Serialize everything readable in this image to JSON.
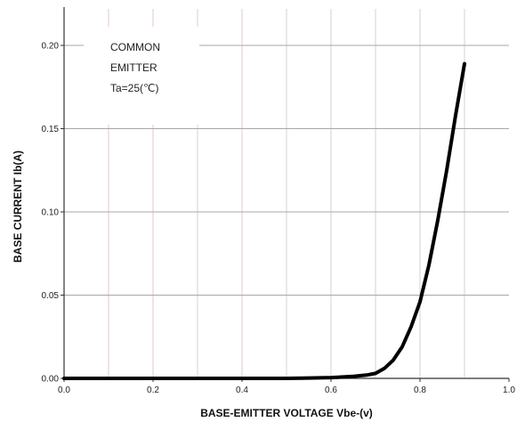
{
  "chart_data": {
    "type": "line",
    "title": "",
    "xlabel": "BASE-EMITTER VOLTAGE Vbe-(v)",
    "ylabel": "BASE CURRENT Ib(A)",
    "xlim": [
      0.0,
      1.0
    ],
    "ylim": [
      0.0,
      0.215
    ],
    "x_ticks": [
      "0.0",
      "0.2",
      "0.4",
      "0.6",
      "0.8",
      "1.0"
    ],
    "x_tick_values": [
      0.0,
      0.2,
      0.4,
      0.6,
      0.8,
      1.0
    ],
    "y_ticks": [
      "0.00",
      "0.05",
      "0.10",
      "0.15",
      "0.20"
    ],
    "y_tick_values": [
      0.0,
      0.05,
      0.1,
      0.15,
      0.2
    ],
    "grid": true,
    "vertical_gridlines": [
      0.1,
      0.2,
      0.3,
      0.4,
      0.5,
      0.6,
      0.7,
      0.8,
      0.9
    ],
    "horizontal_gridlines": [
      0.05,
      0.1,
      0.15,
      0.2
    ],
    "annotation": [
      "COMMON",
      "EMITTER",
      "Ta=25(℃)"
    ],
    "series": [
      {
        "x": [
          0.0,
          0.1,
          0.2,
          0.3,
          0.4,
          0.5,
          0.55,
          0.6,
          0.65,
          0.68,
          0.7,
          0.72,
          0.74,
          0.76,
          0.78,
          0.8,
          0.82,
          0.84,
          0.86,
          0.88,
          0.9
        ],
        "y": [
          0.0,
          0.0,
          0.0,
          0.0,
          0.0,
          0.0,
          0.0002,
          0.0005,
          0.0012,
          0.002,
          0.003,
          0.006,
          0.011,
          0.019,
          0.031,
          0.046,
          0.068,
          0.095,
          0.125,
          0.158,
          0.189
        ]
      }
    ]
  }
}
